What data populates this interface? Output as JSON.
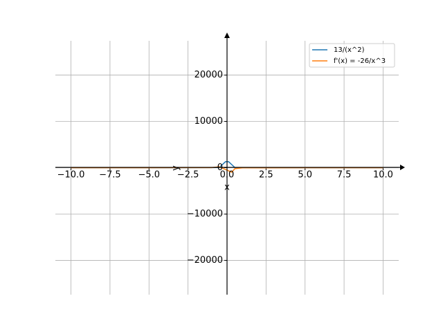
{
  "chart_data": {
    "type": "line",
    "x_label": "x",
    "y_label": "y",
    "series": [
      {
        "name": "13/(x^2)",
        "color": "#1f77b4",
        "x": [
          -10,
          -5,
          -1,
          -0.5,
          -0.1,
          0.1,
          0.5,
          1,
          5,
          10
        ],
        "values": [
          0.13,
          0.52,
          13,
          52,
          1300,
          1300,
          52,
          13,
          0.52,
          0.13
        ]
      },
      {
        "name": "f'(x) = -26/x^3",
        "color": "#ff7f0e",
        "x": [
          -10,
          -5,
          -1,
          -0.5,
          0.3,
          0.5,
          1,
          5,
          10
        ],
        "values": [
          0.026,
          0.208,
          26,
          208,
          -963,
          -208,
          -26,
          -0.208,
          -0.026
        ]
      }
    ],
    "xlim": [
      -11,
      11
    ],
    "ylim": [
      -27400,
      27400
    ],
    "xticks": [
      {
        "value": -10,
        "label": "−10.0"
      },
      {
        "value": -7.5,
        "label": "−7.5"
      },
      {
        "value": -5,
        "label": "−5.0"
      },
      {
        "value": -2.5,
        "label": "−2.5"
      },
      {
        "value": 0,
        "label": "0.0"
      },
      {
        "value": 2.5,
        "label": "2.5"
      },
      {
        "value": 5,
        "label": "5.0"
      },
      {
        "value": 7.5,
        "label": "7.5"
      },
      {
        "value": 10,
        "label": "10.0"
      }
    ],
    "yticks": [
      {
        "value": -20000,
        "label": "−20000"
      },
      {
        "value": -10000,
        "label": "−10000"
      },
      0,
      10000,
      20000
    ],
    "grid": true,
    "legend": "upper right"
  }
}
